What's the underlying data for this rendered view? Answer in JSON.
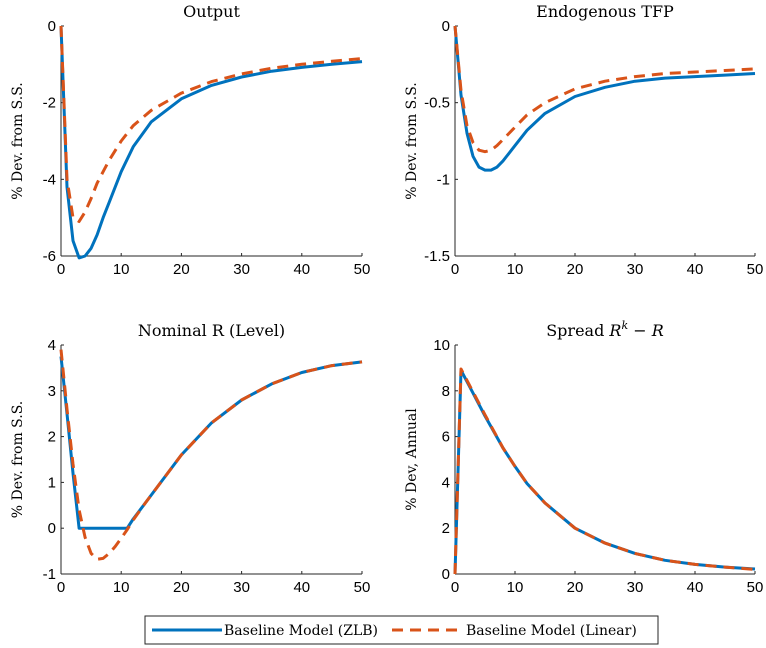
{
  "colors": {
    "zlb": "#0072BD",
    "linear": "#D95319"
  },
  "legend": {
    "entries": [
      {
        "label": "Baseline Model (ZLB)",
        "style": "solid",
        "color": "#0072BD"
      },
      {
        "label": "Baseline Model (Linear)",
        "style": "dashed",
        "color": "#D95319"
      }
    ]
  },
  "chart_data": [
    {
      "type": "line",
      "title": "Output",
      "ylabel": "% Dev. from S.S.",
      "xlim": [
        0,
        50
      ],
      "ylim": [
        -6,
        0
      ],
      "xticks": [
        0,
        10,
        20,
        30,
        40,
        50
      ],
      "yticks": [
        -6,
        -4,
        -2,
        0
      ],
      "grid": false,
      "series": [
        {
          "name": "Baseline Model (ZLB)",
          "x": [
            0,
            1,
            2,
            3,
            4,
            5,
            6,
            7,
            8,
            10,
            12,
            15,
            20,
            25,
            30,
            35,
            40,
            45,
            50
          ],
          "values": [
            0,
            -4.2,
            -5.6,
            -6.05,
            -6.0,
            -5.8,
            -5.45,
            -5.0,
            -4.6,
            -3.8,
            -3.15,
            -2.5,
            -1.9,
            -1.55,
            -1.33,
            -1.18,
            -1.08,
            -1.0,
            -0.93
          ]
        },
        {
          "name": "Baseline Model (Linear)",
          "x": [
            0,
            1,
            2,
            3,
            4,
            5,
            6,
            7,
            8,
            10,
            12,
            15,
            20,
            25,
            30,
            35,
            40,
            45,
            50
          ],
          "values": [
            0,
            -4.0,
            -5.0,
            -5.1,
            -4.85,
            -4.5,
            -4.1,
            -3.8,
            -3.5,
            -3.0,
            -2.6,
            -2.2,
            -1.75,
            -1.45,
            -1.25,
            -1.1,
            -1.0,
            -0.92,
            -0.85
          ]
        }
      ]
    },
    {
      "type": "line",
      "title": "Endogenous TFP",
      "ylabel": "% Dev. from S.S.",
      "xlim": [
        0,
        50
      ],
      "ylim": [
        -1.5,
        0
      ],
      "xticks": [
        0,
        10,
        20,
        30,
        40,
        50
      ],
      "yticks": [
        -1.5,
        -1,
        -0.5,
        0
      ],
      "grid": false,
      "series": [
        {
          "name": "Baseline Model (ZLB)",
          "x": [
            0,
            1,
            2,
            3,
            4,
            5,
            6,
            7,
            8,
            10,
            12,
            15,
            20,
            25,
            30,
            35,
            40,
            45,
            50
          ],
          "values": [
            0,
            -0.45,
            -0.7,
            -0.85,
            -0.92,
            -0.94,
            -0.94,
            -0.92,
            -0.88,
            -0.78,
            -0.68,
            -0.57,
            -0.46,
            -0.4,
            -0.36,
            -0.34,
            -0.33,
            -0.32,
            -0.31
          ]
        },
        {
          "name": "Baseline Model (Linear)",
          "x": [
            0,
            1,
            2,
            3,
            4,
            5,
            6,
            7,
            8,
            10,
            12,
            15,
            20,
            25,
            30,
            35,
            40,
            45,
            50
          ],
          "values": [
            0,
            -0.42,
            -0.65,
            -0.76,
            -0.81,
            -0.82,
            -0.81,
            -0.78,
            -0.74,
            -0.66,
            -0.58,
            -0.5,
            -0.41,
            -0.36,
            -0.33,
            -0.31,
            -0.3,
            -0.29,
            -0.28
          ]
        }
      ]
    },
    {
      "type": "line",
      "title": "Nominal R (Level)",
      "ylabel": "% Dev. from S.S.",
      "xlim": [
        0,
        50
      ],
      "ylim": [
        -1,
        4
      ],
      "xticks": [
        0,
        10,
        20,
        30,
        40,
        50
      ],
      "yticks": [
        -1,
        0,
        1,
        2,
        3,
        4
      ],
      "grid": false,
      "series": [
        {
          "name": "Baseline Model (ZLB)",
          "x": [
            0,
            1,
            2,
            3,
            5,
            7,
            9,
            11,
            12,
            14,
            16,
            18,
            20,
            25,
            30,
            35,
            40,
            45,
            50
          ],
          "values": [
            3.75,
            2.5,
            1.2,
            0,
            0,
            0,
            0,
            0,
            0.2,
            0.55,
            0.9,
            1.25,
            1.6,
            2.3,
            2.8,
            3.15,
            3.4,
            3.55,
            3.63
          ]
        },
        {
          "name": "Baseline Model (Linear)",
          "x": [
            0,
            1,
            2,
            3,
            4,
            5,
            6,
            7,
            8,
            9,
            10,
            11,
            12,
            14,
            16,
            18,
            20,
            25,
            30,
            35,
            40,
            45,
            50
          ],
          "values": [
            3.9,
            2.6,
            1.4,
            0.4,
            -0.2,
            -0.55,
            -0.68,
            -0.66,
            -0.55,
            -0.4,
            -0.22,
            -0.03,
            0.18,
            0.55,
            0.9,
            1.25,
            1.6,
            2.3,
            2.8,
            3.15,
            3.4,
            3.55,
            3.63
          ]
        }
      ]
    },
    {
      "type": "line",
      "title": "Spread R^k − R",
      "title_parts": {
        "prefix": "Spread",
        "base": "R",
        "sup": "k",
        "suffix": " − R"
      },
      "ylabel": "% Dev, Annual",
      "xlim": [
        0,
        50
      ],
      "ylim": [
        0,
        10
      ],
      "xticks": [
        0,
        10,
        20,
        30,
        40,
        50
      ],
      "yticks": [
        0,
        2,
        4,
        6,
        8,
        10
      ],
      "grid": false,
      "series": [
        {
          "name": "Baseline Model (ZLB)",
          "x": [
            0,
            1,
            3,
            5,
            8,
            10,
            12,
            15,
            20,
            25,
            30,
            35,
            40,
            45,
            50
          ],
          "values": [
            0,
            8.9,
            7.9,
            6.9,
            5.5,
            4.7,
            3.95,
            3.1,
            2.0,
            1.35,
            0.9,
            0.6,
            0.42,
            0.3,
            0.22
          ]
        },
        {
          "name": "Baseline Model (Linear)",
          "x": [
            0,
            1,
            3,
            5,
            8,
            10,
            12,
            15,
            20,
            25,
            30,
            35,
            40,
            45,
            50
          ],
          "values": [
            0,
            8.95,
            7.95,
            6.95,
            5.5,
            4.7,
            3.95,
            3.1,
            2.0,
            1.35,
            0.9,
            0.6,
            0.42,
            0.3,
            0.2
          ]
        }
      ]
    }
  ]
}
